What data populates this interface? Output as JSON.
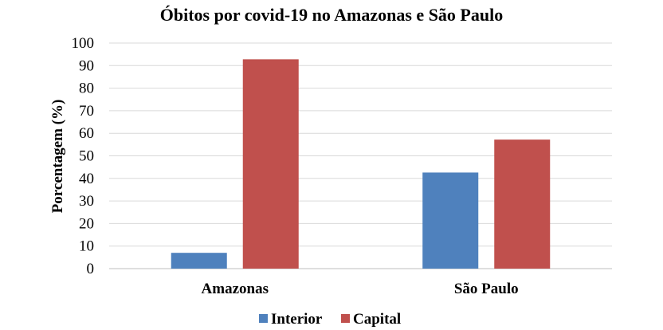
{
  "chart_data": {
    "type": "bar",
    "title": "Óbitos por covid-19 no Amazonas e São Paulo",
    "xlabel": "",
    "ylabel": "Porcentagem (%)",
    "categories": [
      "Amazonas",
      "São Paulo"
    ],
    "series": [
      {
        "name": "Interior",
        "values": [
          7,
          42.6
        ],
        "color": "#4F81BD"
      },
      {
        "name": "Capital",
        "values": [
          92.8,
          57.2
        ],
        "color": "#C0504D"
      }
    ],
    "ylim": [
      0,
      100
    ],
    "yticks": [
      0,
      10,
      20,
      30,
      40,
      50,
      60,
      70,
      80,
      90,
      100
    ],
    "grid": true,
    "gridline_color": "#D9D9D9",
    "legend_placement": "bottom"
  }
}
